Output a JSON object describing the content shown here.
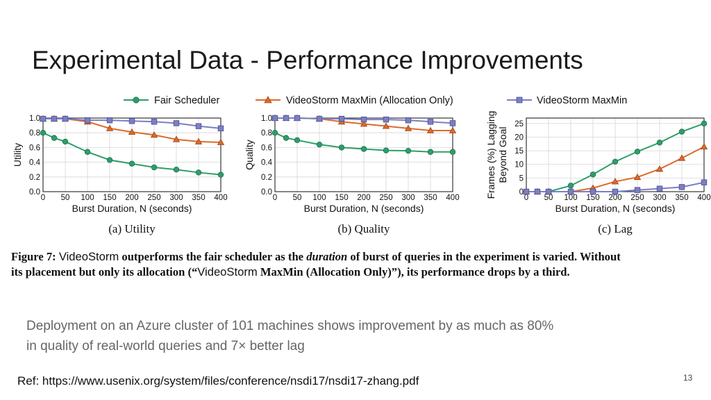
{
  "slide": {
    "title": "Experimental Data - Performance Improvements",
    "body_line1": "Deployment on an Azure cluster of 101 machines shows improvement by as much as 80%",
    "body_line2": "in quality of real-world queries and 7× better lag",
    "ref": "Ref: https://www.usenix.org/system/files/conference/nsdi17/nsdi17-zhang.pdf",
    "page_number": "13"
  },
  "figure": {
    "caption_label": "Figure 7:",
    "caption_system": "VideoStorm",
    "caption_part1": "outperforms the fair scheduler as the",
    "caption_emph": "duration",
    "caption_part2": "of burst of queries in the experiment is varied. Without",
    "caption_part3": "its placement but only its allocation (“",
    "caption_system2": "VideoStorm",
    "caption_part4": "MaxMin (Allocation Only)”), its performance drops by a third."
  },
  "colors": {
    "fair": "#2e9e6a",
    "allocation_only": "#dd6a2a",
    "maxmin": "#7b7fc4"
  },
  "chart_data": [
    {
      "type": "line",
      "panel_label": "(a) Utility",
      "xlabel": "Burst Duration, N (seconds)",
      "ylabel": "Utility",
      "x": [
        0,
        25,
        50,
        100,
        150,
        200,
        250,
        300,
        350,
        400
      ],
      "xticks": [
        0,
        50,
        100,
        150,
        200,
        250,
        300,
        350,
        400
      ],
      "yticks": [
        "0.0",
        "0.2",
        "0.4",
        "0.6",
        "0.8",
        "1.0"
      ],
      "xlim": [
        0,
        400
      ],
      "ylim": [
        0,
        1.0
      ],
      "grid": true,
      "series": [
        {
          "name": "Fair Scheduler",
          "marker": "circle",
          "values": [
            0.8,
            0.73,
            0.68,
            0.54,
            0.43,
            0.38,
            0.33,
            0.3,
            0.26,
            0.23
          ]
        },
        {
          "name": "VideoStorm MaxMin (Allocation Only)",
          "marker": "triangle",
          "values": [
            0.99,
            0.99,
            0.99,
            0.95,
            0.86,
            0.81,
            0.77,
            0.71,
            0.68,
            0.67
          ]
        },
        {
          "name": "VideoStorm MaxMin",
          "marker": "square",
          "values": [
            0.99,
            0.99,
            0.99,
            0.97,
            0.97,
            0.96,
            0.95,
            0.93,
            0.89,
            0.86
          ]
        }
      ]
    },
    {
      "type": "line",
      "panel_label": "(b) Quality",
      "xlabel": "Burst Duration, N (seconds)",
      "ylabel": "Quality",
      "x": [
        0,
        25,
        50,
        100,
        150,
        200,
        250,
        300,
        350,
        400
      ],
      "xticks": [
        0,
        50,
        100,
        150,
        200,
        250,
        300,
        350,
        400
      ],
      "yticks": [
        "0.0",
        "0.2",
        "0.4",
        "0.6",
        "0.8",
        "1.0"
      ],
      "xlim": [
        0,
        400
      ],
      "ylim": [
        0,
        1.0
      ],
      "grid": true,
      "series": [
        {
          "name": "Fair Scheduler",
          "marker": "circle",
          "values": [
            0.8,
            0.73,
            0.7,
            0.64,
            0.6,
            0.58,
            0.56,
            0.555,
            0.54,
            0.54
          ]
        },
        {
          "name": "VideoStorm MaxMin (Allocation Only)",
          "marker": "triangle",
          "values": [
            1.0,
            1.0,
            1.0,
            0.99,
            0.95,
            0.92,
            0.89,
            0.86,
            0.83,
            0.83
          ]
        },
        {
          "name": "VideoStorm MaxMin",
          "marker": "square",
          "values": [
            1.0,
            1.0,
            1.0,
            0.99,
            0.99,
            0.98,
            0.98,
            0.97,
            0.95,
            0.93
          ]
        }
      ]
    },
    {
      "type": "line",
      "panel_label": "(c) Lag",
      "xlabel": "Burst Duration, N (seconds)",
      "ylabel": "Frames (%) Lagging Beyond Goal",
      "ylabel_lines": [
        "Frames (%) Lagging",
        "Beyond Goal"
      ],
      "x": [
        0,
        25,
        50,
        100,
        150,
        200,
        250,
        300,
        350,
        400
      ],
      "xticks": [
        0,
        50,
        100,
        150,
        200,
        250,
        300,
        350,
        400
      ],
      "yticks": [
        "0",
        "5",
        "10",
        "15",
        "20",
        "25"
      ],
      "xlim": [
        0,
        400
      ],
      "ylim": [
        0,
        27
      ],
      "grid": true,
      "series": [
        {
          "name": "Fair Scheduler",
          "marker": "circle",
          "values": [
            0,
            0,
            0,
            2.2,
            6.3,
            11.0,
            14.7,
            18.0,
            22.0,
            25.0
          ]
        },
        {
          "name": "VideoStorm MaxMin (Allocation Only)",
          "marker": "triangle",
          "values": [
            0,
            0,
            0,
            0,
            1.3,
            3.7,
            5.3,
            8.3,
            12.3,
            16.5
          ]
        },
        {
          "name": "VideoStorm MaxMin",
          "marker": "square",
          "values": [
            0,
            0,
            0,
            0,
            0,
            0,
            0.6,
            1.1,
            1.7,
            3.4
          ]
        }
      ]
    }
  ]
}
